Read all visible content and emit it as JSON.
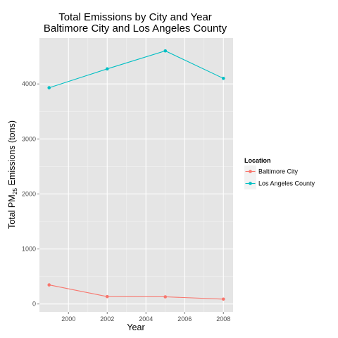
{
  "chart_data": {
    "type": "line",
    "title": [
      "Total Emissions by City and Year",
      "Baltimore City and Los Angeles County"
    ],
    "xlabel": "Year",
    "ylabel_prefix": "Total PM",
    "ylabel_sub": "25",
    "ylabel_suffix": " Emissions (tons)",
    "x": [
      1999,
      2002,
      2005,
      2008
    ],
    "xlim": [
      1998.5,
      2008.5
    ],
    "ylim": [
      -145,
      4835
    ],
    "xticks": [
      2000,
      2002,
      2004,
      2006,
      2008
    ],
    "yticks": [
      0,
      1000,
      2000,
      3000,
      4000
    ],
    "grid": true,
    "legend": {
      "title": "Location",
      "placement": "right"
    },
    "series": [
      {
        "name": "Baltimore City",
        "color": "#F8766D",
        "values": [
          346.8,
          134.3,
          130.4,
          88.3
        ]
      },
      {
        "name": "Los Angeles County",
        "color": "#00BFC4",
        "values": [
          3931.1,
          4274.0,
          4601.4,
          4101.3
        ]
      }
    ]
  }
}
